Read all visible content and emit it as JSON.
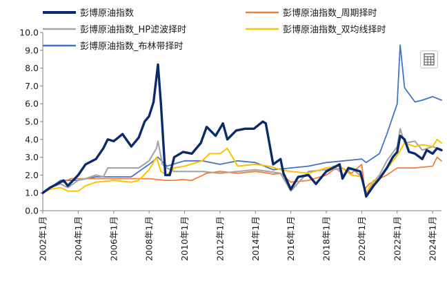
{
  "chart_data": {
    "type": "line",
    "title": "",
    "xlabel": "",
    "ylabel": "",
    "ylim": [
      0,
      10
    ],
    "yticks": [
      "0.0",
      "1.0",
      "2.0",
      "3.0",
      "4.0",
      "5.0",
      "6.0",
      "7.0",
      "8.0",
      "9.0",
      "10.0"
    ],
    "xlim": [
      "2002-01",
      "2024-07"
    ],
    "xticks": [
      {
        "date": "2002-01",
        "label": "2002年1月"
      },
      {
        "date": "2004-01",
        "label": "2004年1月"
      },
      {
        "date": "2006-01",
        "label": "2006年1月"
      },
      {
        "date": "2008-01",
        "label": "2008年1月"
      },
      {
        "date": "2010-01",
        "label": "2010年1月"
      },
      {
        "date": "2012-01",
        "label": "2012年1月"
      },
      {
        "date": "2014-01",
        "label": "2014年1月"
      },
      {
        "date": "2016-01",
        "label": "2016年1月"
      },
      {
        "date": "2018-01",
        "label": "2018年1月"
      },
      {
        "date": "2020-01",
        "label": "2020年1月"
      },
      {
        "date": "2022-01",
        "label": "2022年1月"
      },
      {
        "date": "2024-01",
        "label": "2024年1月"
      }
    ],
    "grid": false,
    "legend_position": "top",
    "series": [
      {
        "name": "彭博原油指数",
        "color": "#0b2a6b",
        "width": 3.4,
        "x": [
          "2002-01",
          "2002-06",
          "2003-01",
          "2003-03",
          "2003-06",
          "2004-01",
          "2004-06",
          "2005-01",
          "2005-06",
          "2005-09",
          "2006-01",
          "2006-07",
          "2007-01",
          "2007-06",
          "2007-10",
          "2008-01",
          "2008-04",
          "2008-07",
          "2008-09",
          "2008-12",
          "2009-03",
          "2009-06",
          "2009-12",
          "2010-06",
          "2010-12",
          "2011-04",
          "2011-10",
          "2012-03",
          "2012-06",
          "2012-12",
          "2013-06",
          "2013-12",
          "2014-06",
          "2014-08",
          "2014-10",
          "2015-01",
          "2015-06",
          "2015-08",
          "2016-01",
          "2016-06",
          "2017-01",
          "2017-06",
          "2018-01",
          "2018-10",
          "2018-12",
          "2019-04",
          "2019-12",
          "2020-03",
          "2020-04",
          "2020-09",
          "2021-01",
          "2021-06",
          "2021-10",
          "2022-01",
          "2022-03",
          "2022-06",
          "2022-09",
          "2023-01",
          "2023-06",
          "2023-09",
          "2024-01",
          "2024-04",
          "2024-07"
        ],
        "values": [
          1.0,
          1.3,
          1.6,
          1.7,
          1.4,
          2.0,
          2.6,
          2.9,
          3.5,
          4.0,
          3.9,
          4.3,
          3.6,
          4.1,
          5.0,
          5.3,
          6.1,
          8.2,
          6.0,
          2.0,
          2.0,
          3.0,
          3.3,
          3.2,
          3.8,
          4.7,
          4.2,
          4.9,
          4.0,
          4.5,
          4.6,
          4.6,
          5.0,
          4.9,
          4.0,
          2.6,
          2.9,
          2.1,
          1.2,
          1.9,
          2.0,
          1.5,
          2.2,
          2.6,
          1.8,
          2.4,
          2.2,
          1.2,
          0.8,
          1.4,
          1.8,
          2.4,
          3.0,
          3.3,
          4.2,
          4.0,
          3.3,
          3.2,
          2.9,
          3.4,
          3.2,
          3.5,
          3.4
        ]
      },
      {
        "name": "彭博原油指数_周期择时",
        "color": "#f07e3b",
        "width": 1.8,
        "x": [
          "2002-01",
          "2002-06",
          "2003-01",
          "2003-03",
          "2003-08",
          "2004-01",
          "2006-01",
          "2008-01",
          "2008-12",
          "2009-06",
          "2009-12",
          "2010-06",
          "2011-04",
          "2012-01",
          "2013-01",
          "2014-01",
          "2014-10",
          "2015-01",
          "2015-06",
          "2016-01",
          "2017-01",
          "2018-01",
          "2018-06",
          "2018-12",
          "2019-06",
          "2020-01",
          "2020-03",
          "2020-06",
          "2021-01",
          "2021-06",
          "2022-01",
          "2022-06",
          "2023-01",
          "2024-01",
          "2024-04",
          "2024-07"
        ],
        "values": [
          1.0,
          1.3,
          1.6,
          1.6,
          1.8,
          1.8,
          1.8,
          1.8,
          1.7,
          1.7,
          1.75,
          1.7,
          2.1,
          2.2,
          2.1,
          2.2,
          2.1,
          2.05,
          2.1,
          1.6,
          1.7,
          2.0,
          2.3,
          2.4,
          2.1,
          2.6,
          1.2,
          1.5,
          1.8,
          2.0,
          2.4,
          2.4,
          2.4,
          2.5,
          3.0,
          2.8
        ]
      },
      {
        "name": "彭博原油指数_HP滤波择时",
        "color": "#a6a6a6",
        "width": 2.2,
        "x": [
          "2002-01",
          "2002-06",
          "2003-01",
          "2003-06",
          "2004-01",
          "2004-06",
          "2005-01",
          "2005-06",
          "2005-09",
          "2006-01",
          "2007-01",
          "2007-06",
          "2008-01",
          "2008-06",
          "2008-07",
          "2008-10",
          "2009-01",
          "2009-06",
          "2010-01",
          "2011-01",
          "2012-01",
          "2013-01",
          "2014-01",
          "2014-10",
          "2015-06",
          "2016-01",
          "2017-01",
          "2018-01",
          "2018-06",
          "2019-01",
          "2019-06",
          "2020-01",
          "2020-04",
          "2020-09",
          "2021-01",
          "2021-06",
          "2022-01",
          "2022-03",
          "2022-06",
          "2023-01",
          "2023-06",
          "2024-01",
          "2024-07"
        ],
        "values": [
          1.0,
          1.3,
          1.5,
          1.3,
          1.7,
          1.8,
          2.0,
          1.9,
          2.4,
          2.4,
          2.4,
          2.4,
          2.8,
          3.5,
          3.9,
          2.6,
          2.4,
          2.2,
          2.2,
          2.2,
          2.1,
          2.2,
          2.3,
          2.2,
          2.1,
          1.1,
          2.2,
          2.3,
          2.5,
          2.0,
          2.4,
          1.9,
          0.9,
          1.6,
          2.0,
          2.8,
          3.6,
          4.6,
          3.8,
          3.9,
          3.4,
          3.6,
          3.4
        ]
      },
      {
        "name": "彭博原油指数_双均线择时",
        "color": "#ffc000",
        "width": 2.0,
        "x": [
          "2002-01",
          "2002-06",
          "2003-01",
          "2003-06",
          "2004-01",
          "2004-06",
          "2005-01",
          "2006-01",
          "2007-01",
          "2007-06",
          "2008-01",
          "2008-06",
          "2008-09",
          "2009-01",
          "2009-06",
          "2010-01",
          "2011-01",
          "2011-06",
          "2012-01",
          "2012-06",
          "2013-01",
          "2014-01",
          "2014-10",
          "2015-06",
          "2016-01",
          "2017-01",
          "2018-01",
          "2018-10",
          "2019-06",
          "2020-01",
          "2020-04",
          "2020-09",
          "2021-01",
          "2022-01",
          "2022-06",
          "2023-01",
          "2023-06",
          "2024-01",
          "2024-04",
          "2024-07"
        ],
        "values": [
          1.0,
          1.2,
          1.3,
          1.1,
          1.1,
          1.4,
          1.6,
          1.7,
          1.6,
          1.7,
          2.3,
          3.0,
          2.2,
          2.0,
          2.4,
          2.5,
          2.8,
          3.2,
          3.2,
          3.5,
          2.5,
          2.6,
          2.5,
          2.3,
          2.2,
          2.1,
          2.4,
          2.5,
          2.0,
          1.9,
          1.0,
          1.7,
          1.8,
          3.1,
          3.8,
          3.6,
          3.7,
          3.6,
          4.0,
          3.8
        ]
      },
      {
        "name": "彭博原油指数_布林带择时",
        "color": "#4472c4",
        "width": 1.8,
        "x": [
          "2002-01",
          "2003-01",
          "2004-01",
          "2005-01",
          "2006-01",
          "2007-01",
          "2008-01",
          "2008-07",
          "2009-01",
          "2010-01",
          "2011-01",
          "2012-01",
          "2013-01",
          "2014-01",
          "2015-01",
          "2016-01",
          "2017-01",
          "2018-01",
          "2019-01",
          "2020-01",
          "2020-04",
          "2021-01",
          "2021-06",
          "2022-01",
          "2022-03",
          "2022-06",
          "2023-01",
          "2023-06",
          "2024-01",
          "2024-07"
        ],
        "values": [
          1.0,
          1.7,
          1.7,
          1.9,
          1.9,
          1.9,
          2.6,
          3.0,
          2.5,
          2.8,
          2.8,
          2.6,
          2.8,
          2.7,
          2.3,
          2.4,
          2.5,
          2.7,
          2.8,
          2.9,
          2.7,
          3.2,
          4.3,
          6.0,
          9.3,
          6.9,
          6.1,
          6.2,
          6.4,
          6.2
        ]
      }
    ]
  },
  "toolbar": {
    "icon": "table-chart-icon"
  }
}
